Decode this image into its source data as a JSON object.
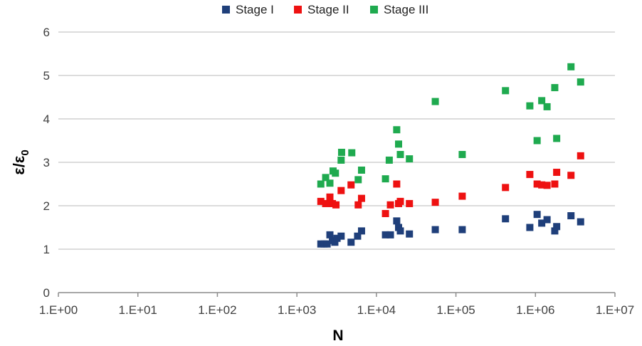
{
  "chart_data": {
    "type": "scatter",
    "xlabel": "N",
    "ylabel_main": "ε/ε",
    "ylabel_sub": "0",
    "x_scale": "log",
    "xlim": [
      1,
      10000000
    ],
    "ylim": [
      0,
      6
    ],
    "x_tick_labels": [
      "1.E+00",
      "1.E+01",
      "1.E+02",
      "1.E+03",
      "1.E+04",
      "1.E+05",
      "1.E+06",
      "1.E+07"
    ],
    "y_tick_labels": [
      "0",
      "1",
      "2",
      "3",
      "4",
      "5",
      "6"
    ],
    "grid": "horizontal",
    "legend_position": "top",
    "series": [
      {
        "name": "Stage I",
        "color": "#1f3f7a",
        "points": [
          [
            2000,
            1.12
          ],
          [
            2200,
            1.12
          ],
          [
            2400,
            1.12
          ],
          [
            2600,
            1.33
          ],
          [
            2800,
            1.2
          ],
          [
            3000,
            1.16
          ],
          [
            3200,
            1.25
          ],
          [
            3600,
            1.3
          ],
          [
            4800,
            1.16
          ],
          [
            5800,
            1.3
          ],
          [
            6500,
            1.42
          ],
          [
            13000,
            1.33
          ],
          [
            15000,
            1.33
          ],
          [
            18000,
            1.65
          ],
          [
            19000,
            1.5
          ],
          [
            20000,
            1.42
          ],
          [
            26000,
            1.35
          ],
          [
            55000,
            1.45
          ],
          [
            120000,
            1.45
          ],
          [
            420000,
            1.7
          ],
          [
            850000,
            1.5
          ],
          [
            1050000,
            1.8
          ],
          [
            1200000,
            1.6
          ],
          [
            1400000,
            1.68
          ],
          [
            1750000,
            1.42
          ],
          [
            1850000,
            1.52
          ],
          [
            2800000,
            1.77
          ],
          [
            3700000,
            1.63
          ]
        ]
      },
      {
        "name": "Stage II",
        "color": "#ee1111",
        "points": [
          [
            2000,
            2.1
          ],
          [
            2300,
            2.05
          ],
          [
            2600,
            2.2
          ],
          [
            2800,
            2.05
          ],
          [
            3100,
            2.02
          ],
          [
            3600,
            2.35
          ],
          [
            4800,
            2.48
          ],
          [
            5900,
            2.02
          ],
          [
            6500,
            2.17
          ],
          [
            13000,
            1.82
          ],
          [
            15000,
            2.02
          ],
          [
            18000,
            2.5
          ],
          [
            19000,
            2.05
          ],
          [
            20000,
            2.1
          ],
          [
            26000,
            2.05
          ],
          [
            55000,
            2.08
          ],
          [
            120000,
            2.22
          ],
          [
            420000,
            2.42
          ],
          [
            850000,
            2.72
          ],
          [
            1050000,
            2.5
          ],
          [
            1200000,
            2.48
          ],
          [
            1400000,
            2.47
          ],
          [
            1750000,
            2.5
          ],
          [
            1850000,
            2.77
          ],
          [
            2800000,
            2.7
          ],
          [
            3700000,
            3.15
          ]
        ]
      },
      {
        "name": "Stage III",
        "color": "#1faa4f",
        "points": [
          [
            2000,
            2.5
          ],
          [
            2300,
            2.65
          ],
          [
            2600,
            2.52
          ],
          [
            2850,
            2.8
          ],
          [
            3050,
            2.75
          ],
          [
            3600,
            3.05
          ],
          [
            3650,
            3.23
          ],
          [
            4900,
            3.22
          ],
          [
            5900,
            2.6
          ],
          [
            6500,
            2.82
          ],
          [
            13000,
            2.62
          ],
          [
            14500,
            3.05
          ],
          [
            18000,
            3.75
          ],
          [
            19000,
            3.42
          ],
          [
            20000,
            3.18
          ],
          [
            26000,
            3.08
          ],
          [
            55000,
            4.4
          ],
          [
            120000,
            3.18
          ],
          [
            420000,
            4.65
          ],
          [
            850000,
            4.3
          ],
          [
            1050000,
            3.5
          ],
          [
            1200000,
            4.42
          ],
          [
            1400000,
            4.28
          ],
          [
            1750000,
            4.72
          ],
          [
            1850000,
            3.55
          ],
          [
            2800000,
            5.2
          ],
          [
            3700000,
            4.85
          ]
        ]
      }
    ]
  }
}
